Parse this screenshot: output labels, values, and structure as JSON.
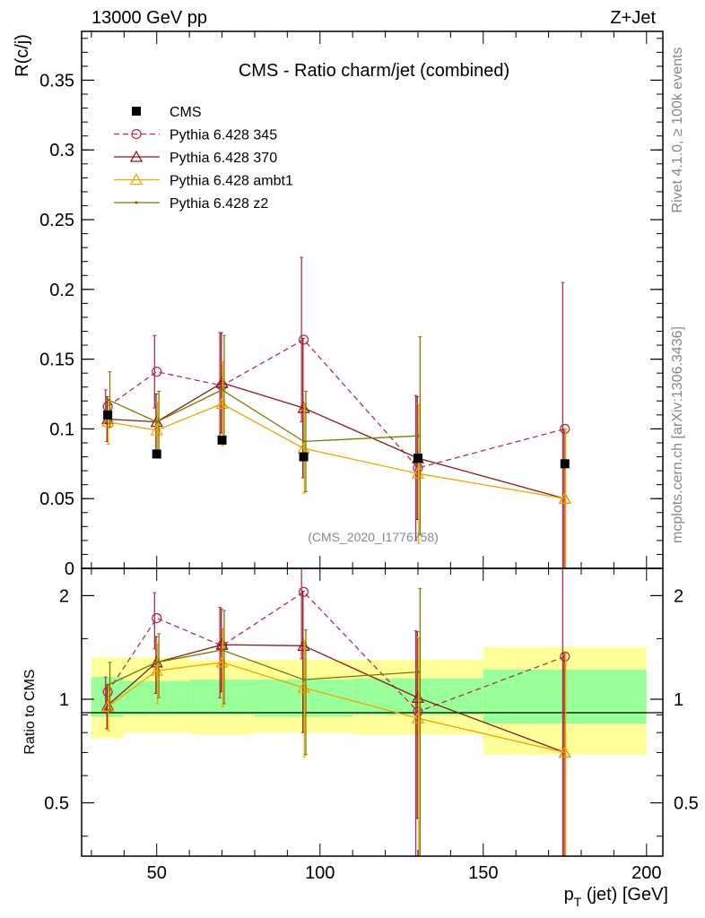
{
  "header": {
    "left": "13000 GeV pp",
    "right": "Z+Jet"
  },
  "side_labels": {
    "top": "Rivet 4.1.0, ≥ 100k events",
    "bottom": "mcplots.cern.ch [arXiv:1306.3436]"
  },
  "watermark": "(CMS_2020_I1776758)",
  "chart_data": [
    {
      "panel": "main",
      "type": "line",
      "title": "CMS - Ratio charm/jet (combined)",
      "ylabel": "R(c/j)",
      "xlabel": "",
      "xlim": [
        27,
        205
      ],
      "ylim": [
        0,
        0.385
      ],
      "yticks": [
        0,
        0.05,
        0.1,
        0.15,
        0.2,
        0.25,
        0.3,
        0.35
      ],
      "ytick_labels": [
        "0",
        "0.05",
        "0.1",
        "0.15",
        "0.2",
        "0.25",
        "0.3",
        "0.35"
      ],
      "legend_position": "top-left",
      "data_points": {
        "name": "CMS",
        "color": "#000000",
        "x": [
          35,
          50,
          70,
          95,
          130,
          175
        ],
        "y": [
          0.11,
          0.082,
          0.092,
          0.08,
          0.079,
          0.075
        ],
        "xerr": [
          5,
          10,
          10,
          15,
          20,
          25
        ],
        "yerr": [
          0.003,
          0.003,
          0.003,
          0.003,
          0.003,
          0.003
        ]
      },
      "series": [
        {
          "name": "Pythia 6.428 345",
          "color": "#b03050",
          "marker": "circle",
          "dash": "6,4",
          "x": [
            35,
            50,
            70,
            95,
            130,
            175
          ],
          "y": [
            0.116,
            0.141,
            0.131,
            0.164,
            0.072,
            0.1
          ],
          "err": [
            0.012,
            0.026,
            0.038,
            0.059,
            0.052,
            0.105
          ]
        },
        {
          "name": "Pythia 6.428 370",
          "color": "#8b1a1a",
          "marker": "triangle",
          "dash": "",
          "x": [
            35,
            50,
            70,
            95,
            130,
            175
          ],
          "y": [
            0.107,
            0.105,
            0.133,
            0.115,
            0.079,
            0.05
          ],
          "err": [
            0.016,
            0.02,
            0.036,
            0.05,
            0.044,
            0.05
          ]
        },
        {
          "name": "Pythia 6.428 ambt1",
          "color": "#f5a300",
          "marker": "triangle",
          "dash": "",
          "x": [
            35,
            50,
            70,
            95,
            130,
            175
          ],
          "y": [
            0.105,
            0.099,
            0.118,
            0.086,
            0.068,
            0.05
          ],
          "err": [
            0.016,
            0.02,
            0.03,
            0.032,
            0.05,
            0.05
          ]
        },
        {
          "name": "Pythia 6.428 z2",
          "color": "#7a7a00",
          "marker": "dot",
          "dash": "",
          "x": [
            35,
            50,
            70,
            95,
            130
          ],
          "y": [
            0.121,
            0.105,
            0.128,
            0.091,
            0.095
          ],
          "err": [
            0.02,
            0.022,
            0.039,
            0.036,
            0.071
          ]
        }
      ]
    },
    {
      "panel": "ratio",
      "type": "line",
      "ylabel": "Ratio to CMS",
      "xlabel": "p_T (jet) [GeV]",
      "xlim": [
        27,
        205
      ],
      "ylim": [
        0.35,
        2.4
      ],
      "yscale": "log",
      "xticks": [
        50,
        100,
        150,
        200
      ],
      "xtick_labels": [
        "50",
        "100",
        "150",
        "200"
      ],
      "yticks": [
        0.5,
        1,
        2
      ],
      "ytick_labels": [
        "0.5",
        "1",
        "2"
      ],
      "bands": {
        "x_edges": [
          30,
          40,
          60,
          80,
          110,
          150,
          200
        ],
        "green_lo": [
          0.89,
          0.9,
          0.9,
          0.89,
          0.9,
          0.85
        ],
        "green_hi": [
          1.16,
          1.13,
          1.14,
          1.14,
          1.15,
          1.22
        ],
        "yellow_lo": [
          0.77,
          0.8,
          0.79,
          0.8,
          0.79,
          0.69
        ],
        "yellow_hi": [
          1.32,
          1.32,
          1.3,
          1.3,
          1.3,
          1.42
        ]
      },
      "series": [
        {
          "name": "Pythia 6.428 345",
          "color": "#b03050",
          "marker": "circle",
          "dash": "6,4",
          "x": [
            35,
            50,
            70,
            95,
            130,
            175
          ],
          "y": [
            1.05,
            1.72,
            1.43,
            2.05,
            0.92,
            1.33
          ],
          "err": [
            0.11,
            0.32,
            0.42,
            0.74,
            0.66,
            1.4
          ]
        },
        {
          "name": "Pythia 6.428 370",
          "color": "#8b1a1a",
          "marker": "triangle",
          "dash": "",
          "x": [
            35,
            50,
            70,
            95,
            130,
            175
          ],
          "y": [
            0.96,
            1.28,
            1.44,
            1.43,
            1.01,
            0.7
          ],
          "err": [
            0.14,
            0.24,
            0.39,
            0.63,
            0.56,
            0.66
          ]
        },
        {
          "name": "Pythia 6.428 ambt1",
          "color": "#f5a300",
          "marker": "triangle",
          "dash": "",
          "x": [
            35,
            50,
            70,
            95,
            130,
            175
          ],
          "y": [
            0.95,
            1.21,
            1.28,
            1.08,
            0.88,
            0.7
          ],
          "err": [
            0.14,
            0.24,
            0.33,
            0.4,
            0.63,
            0.66
          ]
        },
        {
          "name": "Pythia 6.428 z2",
          "color": "#7a7a00",
          "marker": "dot",
          "dash": "",
          "x": [
            35,
            50,
            70,
            95,
            130
          ],
          "y": [
            1.1,
            1.28,
            1.39,
            1.14,
            1.2
          ],
          "err": [
            0.18,
            0.27,
            0.42,
            0.45,
            0.9
          ]
        }
      ]
    }
  ]
}
